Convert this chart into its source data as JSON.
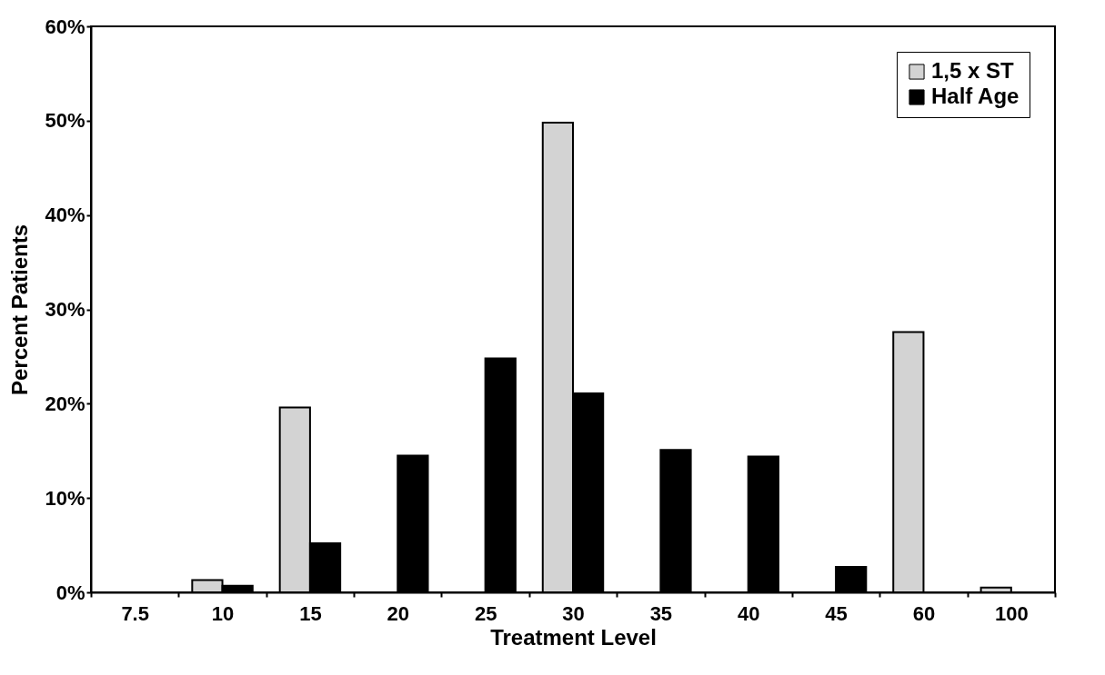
{
  "chart_data": {
    "type": "bar",
    "xlabel": "Treatment Level",
    "ylabel": "Percent Patients",
    "categories": [
      "7.5",
      "10",
      "15",
      "20",
      "25",
      "30",
      "35",
      "40",
      "45",
      "60",
      "100"
    ],
    "series": [
      {
        "name": "1,5 x ST",
        "color": "#d3d3d3",
        "values": [
          null,
          1.3,
          19.6,
          null,
          null,
          49.8,
          null,
          null,
          null,
          27.6,
          0.5
        ]
      },
      {
        "name": "Half Age",
        "color": "#000000",
        "values": [
          null,
          0.7,
          5.2,
          14.5,
          24.8,
          21.1,
          15.1,
          14.4,
          2.7,
          null,
          null
        ]
      }
    ],
    "ylim": [
      0,
      60
    ],
    "yticks": [
      {
        "value": 0,
        "label": "0%"
      },
      {
        "value": 10,
        "label": "10%"
      },
      {
        "value": 20,
        "label": "20%"
      },
      {
        "value": 30,
        "label": "30%"
      },
      {
        "value": 40,
        "label": "40%"
      },
      {
        "value": 50,
        "label": "50%"
      },
      {
        "value": 60,
        "label": "60%"
      }
    ],
    "grid": false,
    "legend": "top right"
  }
}
